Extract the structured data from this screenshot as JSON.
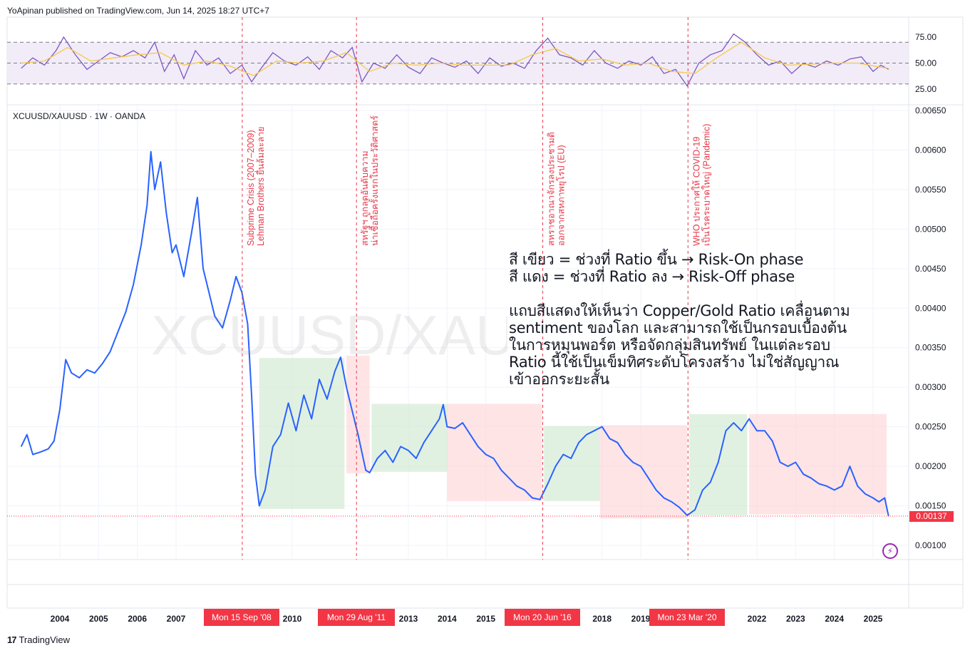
{
  "header": {
    "publisher": "YoApinan published on TradingView.com, Jun 14, 2025 18:27 UTC+7"
  },
  "symbol": {
    "label": "XCUUSD/XAUUSD · 1W · OANDA"
  },
  "watermark": "XCUUSD/XAU",
  "note": {
    "lines": [
      "สี เขียว = ช่วงที่ Ratio ขึ้น → Risk-On phase",
      "สี แดง = ช่วงที่ Ratio ลง → Risk-Off phase",
      "",
      "แถบสีแสดงให้เห็นว่า Copper/Gold Ratio เคลื่อนตาม",
      "sentiment ของโลก และสามารถใช้เป็นกรอบเบื้องต้น",
      "ในการหมุนพอร์ต หรือจัดกลุ่มสินทรัพย์ ในแต่ละรอบ",
      "Ratio นี้ใช้เป็นเข็มทิศระดับโครงสร้าง ไม่ใช่สัญญาณ",
      "เข้าออกระยะสั้น"
    ]
  },
  "footer": {
    "brand": "TradingView"
  },
  "colors": {
    "price_line": "#2962ff",
    "rsi_line": "#7e57c2",
    "rsi_ma": "#f7c948",
    "rsi_band": "#ede7f6",
    "green_zone": "#c8e6c9",
    "red_zone": "#ffcdd2",
    "event_line": "#e5394a",
    "tag": "#f23645"
  },
  "chart_data": {
    "type": "line",
    "rsi": {
      "ticks": [
        "75.00",
        "50.00",
        "25.00"
      ],
      "levels": [
        70,
        50,
        30
      ],
      "range": [
        15,
        90
      ]
    },
    "price": {
      "ticks": [
        "0.00650",
        "0.00600",
        "0.00550",
        "0.00500",
        "0.00450",
        "0.00400",
        "0.00350",
        "0.00300",
        "0.00250",
        "0.00200",
        "0.00150",
        "0.00100"
      ],
      "range": [
        0.00088,
        0.0065
      ],
      "last_value": 0.00137,
      "last_label": "0.00137"
    },
    "x_axis": {
      "year_labels": [
        "2004",
        "2005",
        "2006",
        "2007",
        "2010",
        "2013",
        "2014",
        "2015",
        "2018",
        "2019",
        "2022",
        "2023",
        "2024",
        "2025"
      ],
      "year_values": [
        2004,
        2005,
        2006,
        2007,
        2010,
        2013,
        2014,
        2015,
        2018,
        2019,
        2022,
        2023,
        2024,
        2025
      ]
    },
    "events": [
      {
        "date_label": "Mon 15 Sep '08",
        "t": 2008.71,
        "text1": "Subprime Crisis (2007–2009)",
        "text2": "Lehman Brothers ยื่นล้มละลาย"
      },
      {
        "date_label": "Mon 29 Aug '11",
        "t": 2011.66,
        "text1": "สหรัฐฯ ถูกลดอันดับความ",
        "text2": "น่าเชื่อถือครั้งแรกในประวัติศาสตร์"
      },
      {
        "date_label": "Mon 20 Jun '16",
        "t": 2016.47,
        "text1": "สหราชอาณาจักรลงประชามติ",
        "text2": "ออกจากสหภาพยุโรป (EU)"
      },
      {
        "date_label": "Mon 23 Mar '20",
        "t": 2020.22,
        "text1": "WHO ประกาศให้ COVID-19",
        "text2": "เป็นโรคระบาดใหญ่ (Pandemic)"
      }
    ],
    "zones": [
      {
        "phase": "Risk-On",
        "t0": 2009.15,
        "t1": 2011.35,
        "low": 0.00146,
        "high": 0.00337
      },
      {
        "phase": "Risk-Off",
        "t0": 2011.4,
        "t1": 2012.0,
        "low": 0.00191,
        "high": 0.0034
      },
      {
        "phase": "Risk-On",
        "t0": 2012.05,
        "t1": 2014.0,
        "low": 0.00193,
        "high": 0.00279
      },
      {
        "phase": "Risk-Off",
        "t0": 2014.0,
        "t1": 2016.45,
        "low": 0.00156,
        "high": 0.00279
      },
      {
        "phase": "Risk-On",
        "t0": 2016.5,
        "t1": 2017.95,
        "low": 0.00156,
        "high": 0.00251
      },
      {
        "phase": "Risk-Off",
        "t0": 2017.95,
        "t1": 2020.2,
        "low": 0.00134,
        "high": 0.00252
      },
      {
        "phase": "Risk-On",
        "t0": 2020.25,
        "t1": 2021.75,
        "low": 0.00138,
        "high": 0.00266
      },
      {
        "phase": "Risk-Off",
        "t0": 2021.8,
        "t1": 2025.35,
        "low": 0.00139,
        "high": 0.00266
      }
    ],
    "price_series": {
      "t": [
        2003.0,
        2003.15,
        2003.3,
        2003.5,
        2003.7,
        2003.85,
        2004.0,
        2004.15,
        2004.3,
        2004.5,
        2004.7,
        2004.9,
        2005.1,
        2005.3,
        2005.5,
        2005.7,
        2005.9,
        2006.1,
        2006.25,
        2006.35,
        2006.45,
        2006.6,
        2006.75,
        2006.9,
        2007.0,
        2007.2,
        2007.4,
        2007.55,
        2007.7,
        2007.85,
        2008.0,
        2008.2,
        2008.4,
        2008.55,
        2008.7,
        2008.85,
        2008.95,
        2009.05,
        2009.15,
        2009.3,
        2009.5,
        2009.7,
        2009.9,
        2010.1,
        2010.3,
        2010.5,
        2010.7,
        2010.9,
        2011.1,
        2011.25,
        2011.4,
        2011.55,
        2011.7,
        2011.9,
        2012.0,
        2012.2,
        2012.4,
        2012.6,
        2012.8,
        2013.0,
        2013.2,
        2013.4,
        2013.6,
        2013.8,
        2013.9,
        2014.0,
        2014.2,
        2014.4,
        2014.6,
        2014.8,
        2015.0,
        2015.2,
        2015.4,
        2015.6,
        2015.8,
        2016.0,
        2016.2,
        2016.4,
        2016.6,
        2016.8,
        2017.0,
        2017.2,
        2017.4,
        2017.6,
        2017.8,
        2018.0,
        2018.2,
        2018.4,
        2018.6,
        2018.8,
        2019.0,
        2019.2,
        2019.4,
        2019.6,
        2019.8,
        2020.0,
        2020.2,
        2020.4,
        2020.6,
        2020.8,
        2021.0,
        2021.2,
        2021.4,
        2021.6,
        2021.8,
        2022.0,
        2022.2,
        2022.4,
        2022.6,
        2022.8,
        2023.0,
        2023.2,
        2023.4,
        2023.6,
        2023.8,
        2024.0,
        2024.2,
        2024.4,
        2024.6,
        2024.8,
        2025.0,
        2025.15,
        2025.3,
        2025.4
      ],
      "v": [
        0.00225,
        0.0024,
        0.00215,
        0.00218,
        0.00222,
        0.00232,
        0.00272,
        0.00335,
        0.00318,
        0.00312,
        0.00322,
        0.00318,
        0.0033,
        0.00345,
        0.0037,
        0.00395,
        0.0043,
        0.0048,
        0.0053,
        0.00598,
        0.0055,
        0.00585,
        0.0052,
        0.0047,
        0.0048,
        0.0044,
        0.00495,
        0.0054,
        0.0045,
        0.0042,
        0.0039,
        0.00375,
        0.0041,
        0.0044,
        0.0042,
        0.0038,
        0.0029,
        0.0019,
        0.0015,
        0.0017,
        0.00225,
        0.0024,
        0.0028,
        0.00245,
        0.0029,
        0.0026,
        0.0031,
        0.00285,
        0.0032,
        0.00338,
        0.003,
        0.0027,
        0.0024,
        0.00195,
        0.00192,
        0.0021,
        0.0022,
        0.00205,
        0.00225,
        0.0022,
        0.0021,
        0.0023,
        0.00245,
        0.0026,
        0.00278,
        0.0025,
        0.00248,
        0.00255,
        0.0024,
        0.00225,
        0.00215,
        0.0021,
        0.00195,
        0.00185,
        0.00175,
        0.0017,
        0.0016,
        0.00158,
        0.00178,
        0.002,
        0.00215,
        0.0021,
        0.0023,
        0.0024,
        0.00245,
        0.0025,
        0.00235,
        0.0023,
        0.00215,
        0.00205,
        0.002,
        0.00185,
        0.0017,
        0.0016,
        0.00155,
        0.00148,
        0.00138,
        0.00145,
        0.0017,
        0.0018,
        0.00205,
        0.00245,
        0.00255,
        0.00245,
        0.0026,
        0.00245,
        0.00245,
        0.00232,
        0.00205,
        0.002,
        0.00205,
        0.0019,
        0.00185,
        0.00178,
        0.00175,
        0.0017,
        0.00175,
        0.002,
        0.00175,
        0.00165,
        0.0016,
        0.00155,
        0.0016,
        0.00137
      ]
    },
    "rsi_series": {
      "t": [
        2003.0,
        2003.3,
        2003.6,
        2003.9,
        2004.1,
        2004.4,
        2004.7,
        2005.0,
        2005.3,
        2005.6,
        2005.9,
        2006.2,
        2006.45,
        2006.7,
        2006.95,
        2007.2,
        2007.5,
        2007.8,
        2008.1,
        2008.4,
        2008.7,
        2008.95,
        2009.2,
        2009.5,
        2009.8,
        2010.1,
        2010.4,
        2010.7,
        2011.0,
        2011.3,
        2011.55,
        2011.8,
        2012.1,
        2012.4,
        2012.7,
        2013.0,
        2013.3,
        2013.6,
        2013.9,
        2014.2,
        2014.5,
        2014.8,
        2015.1,
        2015.4,
        2015.7,
        2016.0,
        2016.3,
        2016.6,
        2016.9,
        2017.2,
        2017.5,
        2017.8,
        2018.1,
        2018.4,
        2018.7,
        2019.0,
        2019.3,
        2019.6,
        2019.9,
        2020.2,
        2020.5,
        2020.8,
        2021.1,
        2021.4,
        2021.7,
        2022.0,
        2022.3,
        2022.6,
        2022.9,
        2023.2,
        2023.5,
        2023.8,
        2024.1,
        2024.4,
        2024.7,
        2025.0,
        2025.2,
        2025.4
      ],
      "v": [
        45,
        55,
        48,
        62,
        75,
        58,
        44,
        52,
        60,
        56,
        62,
        55,
        70,
        42,
        58,
        35,
        62,
        48,
        55,
        40,
        48,
        32,
        45,
        60,
        52,
        48,
        56,
        44,
        62,
        55,
        65,
        32,
        50,
        45,
        58,
        46,
        40,
        55,
        50,
        46,
        52,
        40,
        55,
        47,
        50,
        45,
        62,
        74,
        58,
        55,
        48,
        62,
        50,
        45,
        52,
        48,
        56,
        40,
        44,
        28,
        50,
        58,
        62,
        78,
        70,
        58,
        48,
        52,
        40,
        50,
        46,
        52,
        48,
        54,
        56,
        42,
        48,
        44
      ]
    },
    "rsi_ma_series": {
      "t": [
        2003.0,
        2003.6,
        2004.2,
        2004.8,
        2005.4,
        2006.0,
        2006.6,
        2007.2,
        2007.8,
        2008.4,
        2009.0,
        2009.6,
        2010.2,
        2010.8,
        2011.4,
        2012.0,
        2012.6,
        2013.2,
        2013.8,
        2014.4,
        2015.0,
        2015.6,
        2016.2,
        2016.8,
        2017.4,
        2018.0,
        2018.6,
        2019.2,
        2019.8,
        2020.4,
        2021.0,
        2021.6,
        2022.2,
        2022.8,
        2023.4,
        2024.0,
        2024.6,
        2025.2,
        2025.4
      ],
      "v": [
        50,
        52,
        65,
        52,
        55,
        58,
        60,
        48,
        52,
        47,
        38,
        52,
        50,
        52,
        60,
        42,
        50,
        48,
        50,
        48,
        48,
        48,
        58,
        64,
        52,
        54,
        48,
        50,
        42,
        40,
        56,
        70,
        55,
        48,
        49,
        50,
        50,
        46,
        45
      ]
    }
  }
}
